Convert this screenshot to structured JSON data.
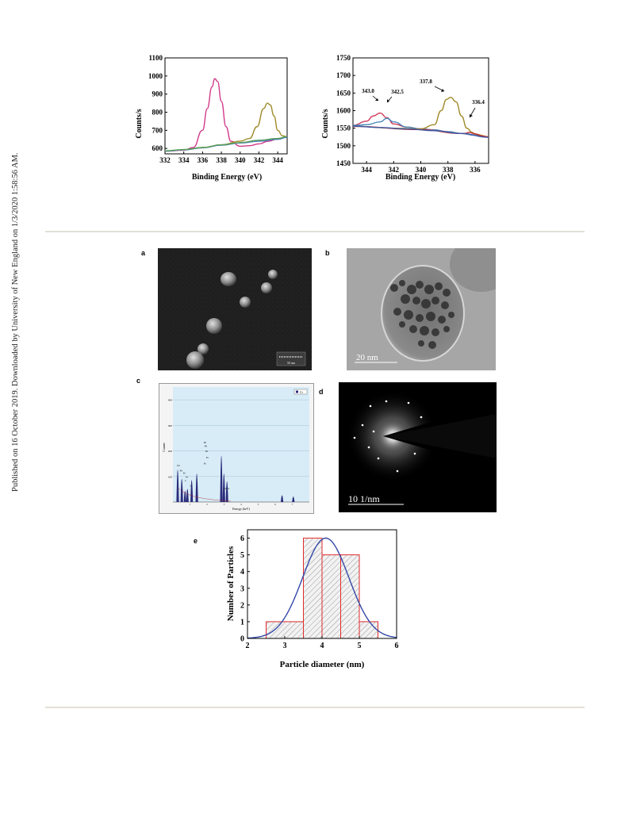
{
  "side_note": "Published on 16 October 2019. Downloaded by University of New England on 1/3/2020 1:58:56 AM.",
  "figures": {
    "xps_left": {
      "ylabel": "Counts/s",
      "xlabel": "Binding Energy (eV)",
      "yticks": [
        "1100",
        "1000",
        "900",
        "800",
        "700",
        "600"
      ],
      "xticks": [
        "332",
        "334",
        "336",
        "338",
        "340",
        "342",
        "344"
      ]
    },
    "xps_right": {
      "ylabel": "Counts/s",
      "xlabel": "Binding Energy (eV)",
      "yticks": [
        "1750",
        "1700",
        "1650",
        "1600",
        "1550",
        "1500",
        "1450"
      ],
      "xticks": [
        "344",
        "342",
        "340",
        "338",
        "336"
      ],
      "annotations": [
        "343.0",
        "342.5",
        "337.8",
        "336.4"
      ]
    },
    "panel_a": {
      "label": "a",
      "scalebar_text": "50 nm"
    },
    "panel_b": {
      "label": "b",
      "scalebar_text": "20 nm"
    },
    "panel_c": {
      "label": "c",
      "legend": "Ct",
      "xlabel": "Energy (keV)",
      "ylabel": "Counts",
      "yticks": [
        "400",
        "300",
        "200",
        "100"
      ],
      "peak_labels": [
        "Pd",
        "Pd",
        "Pd",
        "Pd",
        "Pd",
        "Fe",
        "Fe",
        "Fe",
        "Fe",
        "C",
        "O",
        "Fe Fe"
      ]
    },
    "panel_d": {
      "label": "d",
      "scalebar_text": "10 1/nm"
    },
    "panel_e": {
      "label": "e",
      "ylabel": "Number of Particles",
      "xlabel": "Particle diameter (nm)"
    }
  },
  "chart_data": [
    {
      "type": "line",
      "id": "xps-left",
      "xlabel": "Binding Energy (eV)",
      "ylabel": "Counts/s",
      "xlim": [
        332,
        345
      ],
      "ylim": [
        570,
        1100
      ],
      "x_reversed": false,
      "series": [
        {
          "color": "#d23a8a",
          "x": [
            332,
            334,
            335,
            336,
            336.5,
            337,
            337.3,
            337.6,
            338,
            338.5,
            339,
            340,
            341,
            342,
            343,
            344,
            345
          ],
          "y": [
            585,
            590,
            605,
            700,
            820,
            940,
            985,
            970,
            860,
            720,
            640,
            612,
            615,
            625,
            640,
            652,
            665
          ]
        },
        {
          "color": "#a08a2a",
          "x": [
            332,
            334,
            336,
            338,
            340,
            341,
            341.8,
            342.5,
            342.9,
            343.2,
            343.6,
            344,
            344.5,
            345
          ],
          "y": [
            585,
            592,
            605,
            620,
            640,
            655,
            720,
            820,
            850,
            840,
            780,
            700,
            670,
            665
          ]
        },
        {
          "color": "#4a7abf",
          "x": [
            332,
            334,
            336,
            338,
            340,
            342,
            344,
            345
          ],
          "y": [
            585,
            592,
            603,
            618,
            630,
            640,
            650,
            662
          ]
        },
        {
          "color": "#5aa05a",
          "x": [
            332,
            334,
            336,
            338,
            340,
            342,
            344,
            345
          ],
          "y": [
            587,
            594,
            605,
            620,
            632,
            645,
            655,
            665
          ]
        }
      ]
    },
    {
      "type": "line",
      "id": "xps-right",
      "xlabel": "Binding Energy (eV)",
      "ylabel": "Counts/s",
      "xlim": [
        345,
        335
      ],
      "ylim": [
        1450,
        1750
      ],
      "x_reversed": true,
      "series": [
        {
          "color": "#d23a5a",
          "x": [
            345,
            344,
            343.5,
            343.0,
            342.5,
            342,
            341,
            340,
            339,
            338,
            337,
            336,
            335
          ],
          "y": [
            1558,
            1570,
            1585,
            1593,
            1580,
            1562,
            1553,
            1548,
            1545,
            1540,
            1535,
            1530,
            1525
          ]
        },
        {
          "color": "#4a8abf",
          "x": [
            345,
            344,
            343,
            342.5,
            342,
            341,
            340,
            339,
            338,
            337,
            336,
            335
          ],
          "y": [
            1558,
            1560,
            1568,
            1578,
            1568,
            1553,
            1548,
            1545,
            1540,
            1535,
            1530,
            1525
          ]
        },
        {
          "color": "#a08a2a",
          "x": [
            345,
            342,
            340,
            339,
            338.5,
            338.1,
            337.8,
            337.4,
            337,
            336.6,
            336.2,
            336,
            335
          ],
          "y": [
            1556,
            1550,
            1548,
            1560,
            1600,
            1632,
            1638,
            1625,
            1585,
            1550,
            1538,
            1533,
            1526
          ]
        },
        {
          "color": "#c03030",
          "x": [
            345,
            340,
            337,
            336.8,
            336.4,
            336,
            335.5,
            335
          ],
          "y": [
            1555,
            1546,
            1535,
            1535,
            1538,
            1534,
            1528,
            1525
          ]
        },
        {
          "color": "#3a5aa8",
          "x": [
            345,
            343,
            341,
            339,
            337,
            335
          ],
          "y": [
            1556,
            1552,
            1548,
            1543,
            1535,
            1524
          ]
        }
      ]
    },
    {
      "type": "bar",
      "id": "eds-spectrum",
      "xlabel": "Energy (keV)",
      "ylabel": "Counts",
      "ylim": [
        0,
        450
      ],
      "x": [
        0.28,
        0.52,
        0.71,
        0.85,
        1.1,
        1.4,
        2.84,
        2.99,
        3.17,
        6.4,
        7.06
      ],
      "values": [
        240,
        170,
        75,
        90,
        160,
        210,
        350,
        210,
        150,
        40,
        30
      ]
    },
    {
      "type": "bar",
      "id": "size-histogram",
      "xlabel": "Particle diameter (nm)",
      "ylabel": "Number of Particles",
      "xlim": [
        2,
        6
      ],
      "ylim": [
        0,
        6.5
      ],
      "xticks": [
        2,
        3,
        4,
        5,
        6
      ],
      "yticks": [
        0,
        1,
        2,
        3,
        4,
        5,
        6
      ],
      "bins": [
        [
          2.5,
          3.5
        ],
        [
          3.5,
          4.0
        ],
        [
          4.0,
          4.5
        ],
        [
          4.5,
          5.0
        ],
        [
          5.0,
          5.5
        ]
      ],
      "values": [
        1,
        6,
        5,
        5,
        1
      ],
      "fit": {
        "type": "gaussian",
        "mean": 4.1,
        "peak": 6.0,
        "sigma": 0.62
      }
    }
  ]
}
